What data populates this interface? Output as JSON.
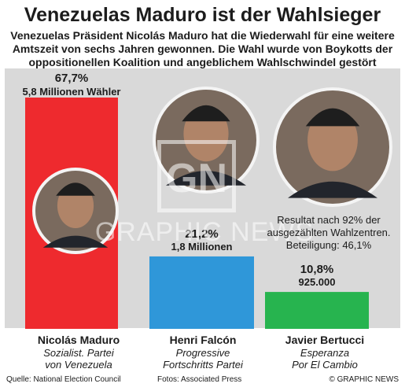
{
  "title": "Venezuelas Maduro ist der Wahlsieger",
  "subtitle": "Venezuelas Präsident Nicolás Maduro hat die Wiederwahl für eine weitere Amtszeit von sechs Jahren gewonnen. Die Wahl wurde von Boykotts der oppositionellen Koalition und angeblichem Wahlschwindel gestört",
  "note": "Resultat nach 92% der ausgezählten Wahlzentren. Beteiligung: 46,1%",
  "watermark": "GRAPHIC NEWS",
  "footer": {
    "source": "Quelle: National Election Council",
    "photos": "Fotos: Associated Press",
    "credit": "© GRAPHIC NEWS"
  },
  "colors": {
    "panel": "#d9d9d9",
    "maduro": "#ee2a2e",
    "falcon": "#2f97d9",
    "bertucci": "#27b44f"
  },
  "chart_data": {
    "type": "bar",
    "categories": [
      "Nicolás Maduro",
      "Henri Falcón",
      "Javier Bertucci"
    ],
    "values": [
      67.7,
      21.2,
      10.8
    ],
    "value_labels": [
      "67,7%",
      "21,2%",
      "10,8%"
    ],
    "vote_labels": [
      "5,8 Millionen Wähler",
      "1,8 Millionen",
      "925.000"
    ],
    "ylim": [
      0,
      67.7
    ],
    "grid": false,
    "candidates": [
      {
        "name": "Nicolás Maduro",
        "party_line1": "Sozialist. Partei",
        "party_line2": "von Venezuela",
        "color": "#ee2a2e",
        "photo_icon": "person-photo-icon"
      },
      {
        "name": "Henri Falcón",
        "party_line1": "Progressive",
        "party_line2": "Fortschritts Partei",
        "color": "#2f97d9",
        "photo_icon": "person-photo-icon"
      },
      {
        "name": "Javier Bertucci",
        "party_line1": "Esperanza",
        "party_line2": "Por El Cambio",
        "color": "#27b44f",
        "photo_icon": "person-photo-icon"
      }
    ]
  }
}
